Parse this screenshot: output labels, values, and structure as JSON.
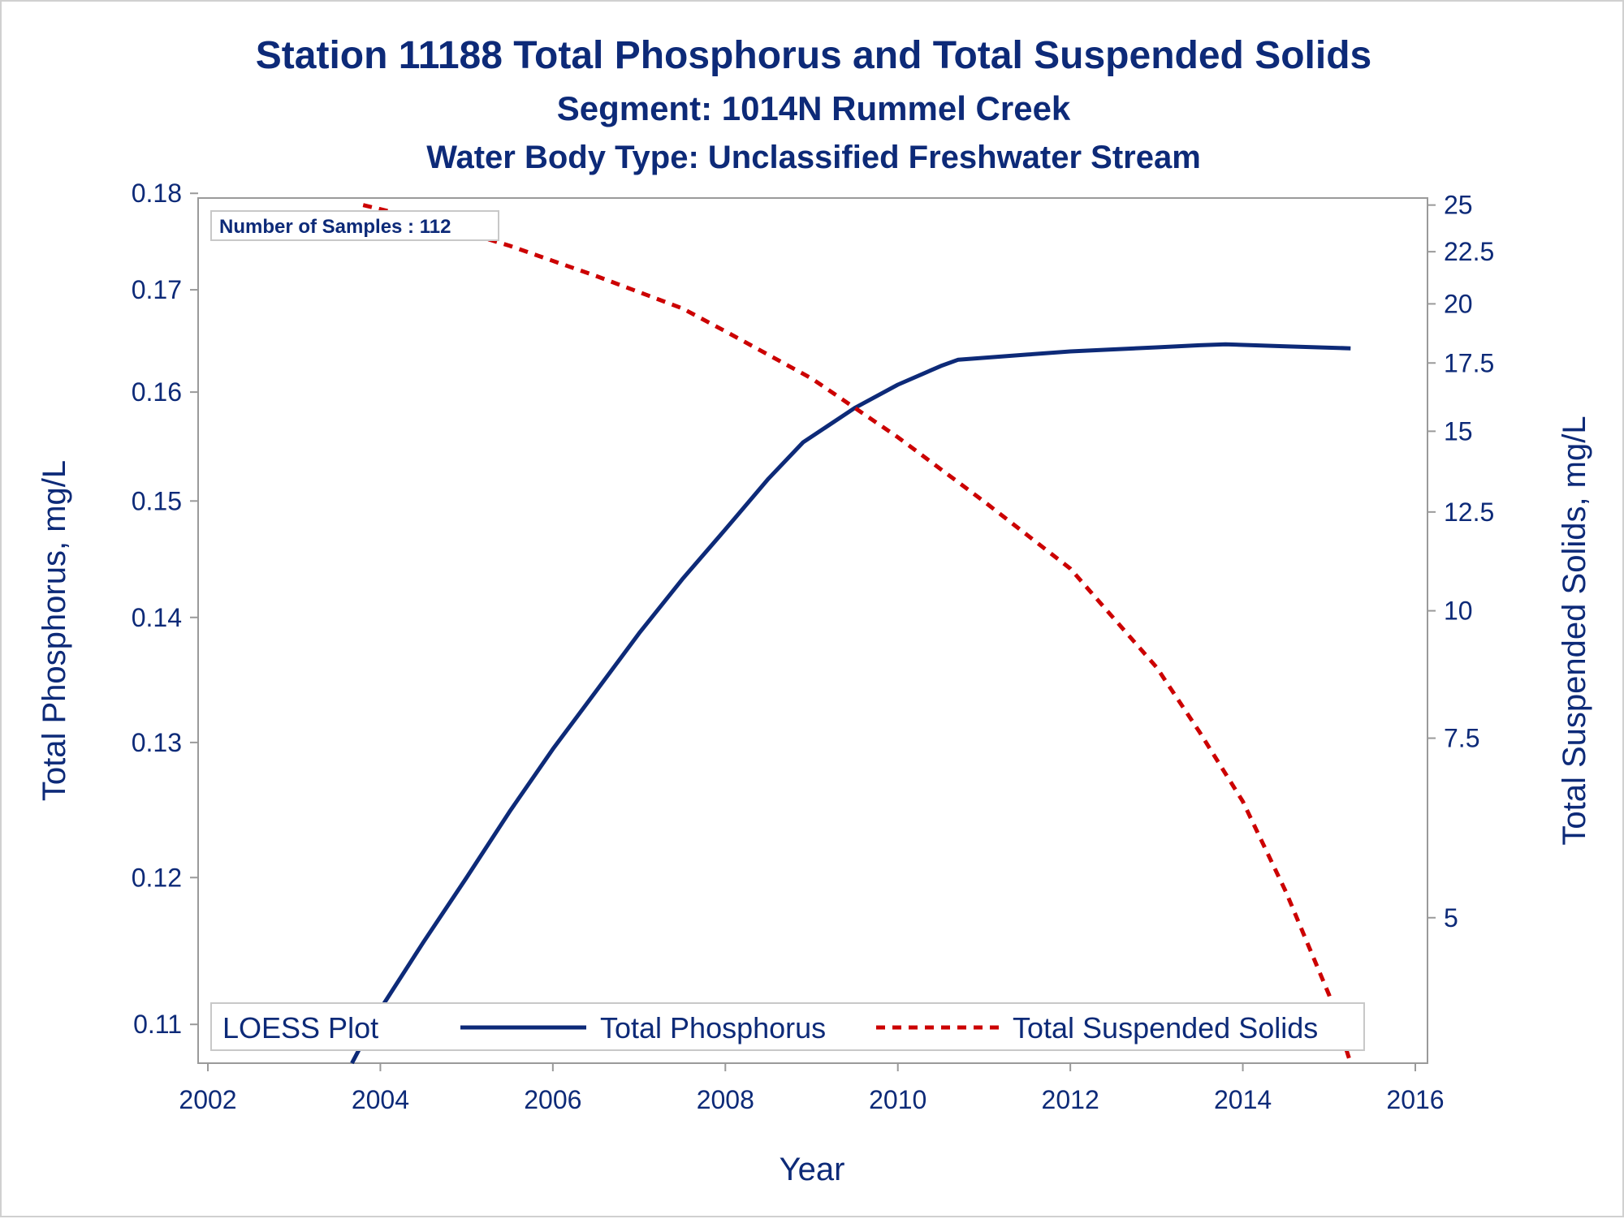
{
  "chart_data": {
    "type": "line",
    "title": "Station 11188  Total Phosphorus and Total Suspended Solids",
    "subtitle": "Segment: 1014N  Rummel Creek",
    "subtitle2": "Water Body Type: Unclassified Freshwater Stream",
    "xlabel": "Year",
    "ylabel": "Total Phosphorus, mg/L",
    "y2label": "Total Suspended Solids, mg/L",
    "xlim": [
      2002,
      2016
    ],
    "ylim": [
      0.1075,
      0.1795
    ],
    "y2lim": [
      3.6,
      25.4
    ],
    "y_scale": "log",
    "y2_scale": "log",
    "xticks": [
      "2002",
      "2004",
      "2006",
      "2008",
      "2010",
      "2012",
      "2014",
      "2016"
    ],
    "yticks": [
      "0.11",
      "0.12",
      "0.13",
      "0.14",
      "0.15",
      "0.16",
      "0.17",
      "0.18"
    ],
    "y2ticks": [
      "5",
      "7.5",
      "10",
      "12.5",
      "15",
      "17.5",
      "20",
      "22.5",
      "25"
    ],
    "grid": false,
    "annotation": "Number of Samples : 112",
    "legend": {
      "title": "LOESS Plot",
      "position": "bottom-inside",
      "entries": [
        "Total Phosphorus",
        "Total Suspended Solids"
      ]
    },
    "series": [
      {
        "name": "Total Phosphorus",
        "axis": "left",
        "color": "#0d2a78",
        "style": "solid",
        "x": [
          2003.67,
          2004.0,
          2004.5,
          2005.0,
          2005.5,
          2006.0,
          2006.5,
          2007.0,
          2007.5,
          2008.0,
          2008.5,
          2008.9,
          2009.5,
          2010.0,
          2010.5,
          2010.7,
          2011.5,
          2012.0,
          2012.5,
          2013.0,
          2013.5,
          2013.8,
          2014.5,
          2015.25
        ],
        "y": [
          0.1075,
          0.111,
          0.1155,
          0.12,
          0.1248,
          0.1295,
          0.134,
          0.1387,
          0.1432,
          0.1475,
          0.152,
          0.1553,
          0.1585,
          0.1607,
          0.1625,
          0.1631,
          0.1636,
          0.1639,
          0.1641,
          0.1643,
          0.1645,
          0.1646,
          0.1644,
          0.1642
        ]
      },
      {
        "name": "Total Suspended Solids",
        "axis": "right",
        "color": "#cc0000",
        "style": "dashed",
        "x": [
          2003.8,
          2004.5,
          2005.5,
          2006.5,
          2007.5,
          2008.0,
          2009.0,
          2010.0,
          2011.0,
          2012.0,
          2013.0,
          2013.5,
          2014.0,
          2014.5,
          2015.0,
          2015.25
        ],
        "y": [
          25.0,
          24.2,
          22.8,
          21.3,
          19.8,
          18.8,
          16.9,
          14.8,
          12.8,
          11.0,
          8.8,
          7.6,
          6.5,
          5.3,
          4.2,
          3.6
        ]
      }
    ]
  }
}
